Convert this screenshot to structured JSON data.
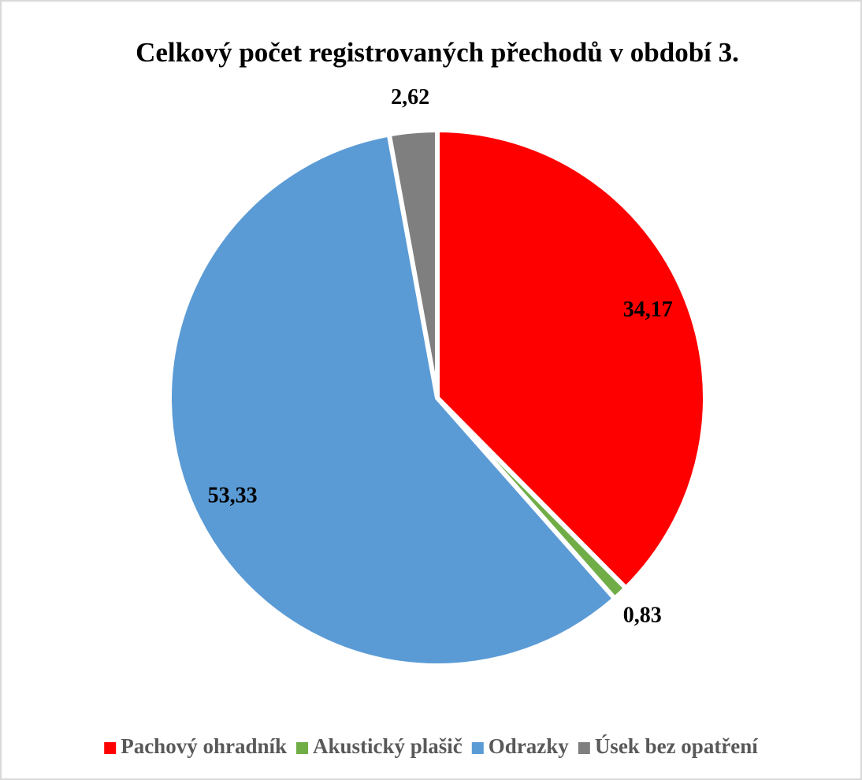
{
  "chart_data": {
    "type": "pie",
    "title": "Celkový počet registrovaných přechodů v období 3.",
    "categories": [
      "Pachový ohradník",
      "Akustický plašič",
      "Odrazky",
      "Úsek bez opatření"
    ],
    "values": [
      34.17,
      0.83,
      53.33,
      2.62
    ],
    "value_labels": [
      "34,17",
      "0,83",
      "53,33",
      "2,62"
    ],
    "colors": [
      "#ff0000",
      "#70ad47",
      "#5b9bd5",
      "#7f7f7f"
    ],
    "legend": "bottom"
  }
}
